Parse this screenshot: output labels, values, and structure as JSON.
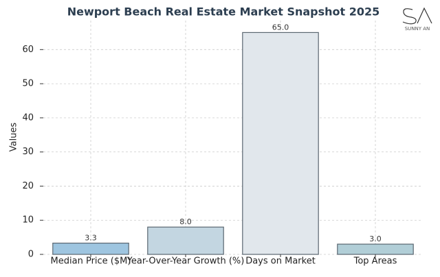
{
  "chart_data": {
    "type": "bar",
    "title": "Newport Beach Real Estate Market Snapshot 2025",
    "y_label": "Values",
    "categories": [
      "Median Price ($M)",
      "Year-Over-Year Growth (%)",
      "Days on Market",
      "Top Areas"
    ],
    "values": [
      3.3,
      8.0,
      65.0,
      3.0
    ],
    "value_labels": [
      "3.3",
      "8.0",
      "65.0",
      "3.0"
    ],
    "colors": [
      "#9ec5e0",
      "#c3d6e1",
      "#e1e7ec",
      "#b1ced7"
    ],
    "edge_color": "#5a6670",
    "ylim": [
      0,
      68.5
    ],
    "yticks": [
      0,
      10,
      20,
      30,
      40,
      50,
      60
    ],
    "grid": true,
    "watermark": "SUNNY AN"
  }
}
